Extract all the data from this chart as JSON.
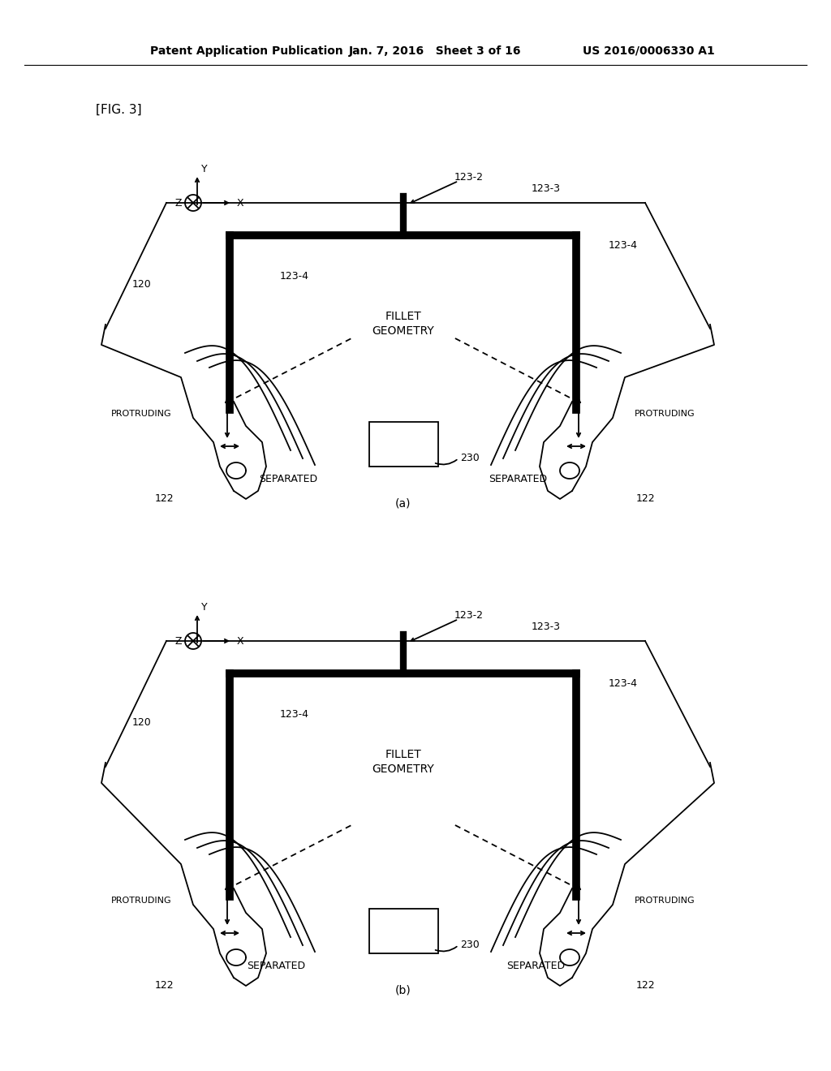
{
  "title_left": "Patent Application Publication",
  "title_mid": "Jan. 7, 2016   Sheet 3 of 16",
  "title_right": "US 2016/0006330 A1",
  "fig_label": "[FIG. 3]",
  "sub_a": "(a)",
  "sub_b": "(b)",
  "bg_color": "#ffffff",
  "fg_color": "#000000",
  "thick_lw": 7.0,
  "thin_lw": 1.3,
  "header_fontsize": 10,
  "label_fontsize": 9,
  "fig_label_fontsize": 11
}
